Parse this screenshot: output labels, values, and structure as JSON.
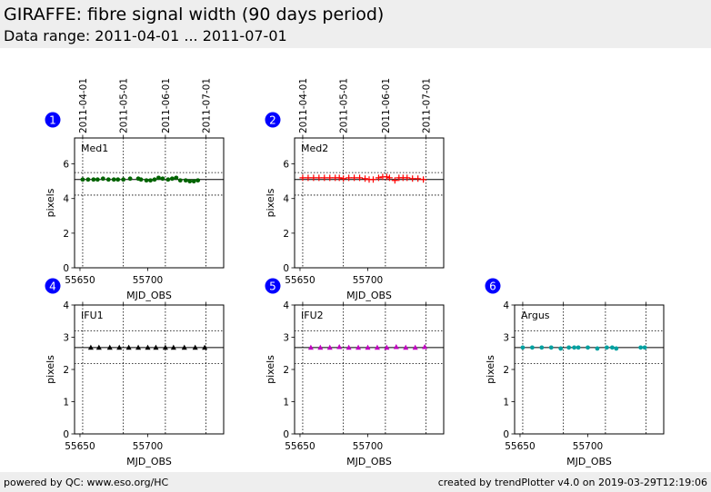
{
  "header": {
    "title": "GIRAFFE: fibre signal width (90 days period)",
    "subtitle": "Data range: 2011-04-01 ... 2011-07-01"
  },
  "footer": {
    "left": "powered by QC: www.eso.org/HC",
    "right": "created by trendPlotter v4.0 on 2019-03-29T12:19:06"
  },
  "colors": {
    "header_bg": "#eeeeee",
    "badge": "#0000ff",
    "Med1": "#006400",
    "Med2": "#ff0000",
    "IFU1": "#000000",
    "IFU2": "#c000c0",
    "Argus": "#00a0a0"
  },
  "chart_data": [
    {
      "type": "scatter",
      "badge": "1",
      "label": "Med1",
      "marker": "circle",
      "color": "#006400",
      "xlabel": "MJD_OBS",
      "ylabel": "pixels",
      "xlim": [
        55646,
        55756
      ],
      "ylim": [
        0,
        7.5
      ],
      "xticks": [
        55650,
        55700
      ],
      "yticks": [
        0,
        2,
        4,
        6
      ],
      "date_ticks": [
        {
          "mjd": 55652,
          "label": "2011-04-01"
        },
        {
          "mjd": 55682,
          "label": "2011-05-01"
        },
        {
          "mjd": 55713,
          "label": "2011-06-01"
        },
        {
          "mjd": 55743,
          "label": "2011-07-01"
        }
      ],
      "hlines": {
        "solid": 5.1,
        "dotted": [
          5.5,
          4.2
        ]
      },
      "x": [
        55652,
        55656,
        55660,
        55663,
        55667,
        55671,
        55675,
        55678,
        55682,
        55687,
        55693,
        55695,
        55699,
        55702,
        55705,
        55708,
        55711,
        55715,
        55718,
        55721,
        55724,
        55728,
        55731,
        55734,
        55737
      ],
      "y": [
        5.1,
        5.1,
        5.1,
        5.1,
        5.15,
        5.1,
        5.1,
        5.1,
        5.1,
        5.15,
        5.15,
        5.1,
        5.05,
        5.05,
        5.1,
        5.2,
        5.15,
        5.1,
        5.15,
        5.2,
        5.05,
        5.05,
        5.0,
        5.0,
        5.05
      ]
    },
    {
      "type": "scatter",
      "badge": "2",
      "label": "Med2",
      "marker": "plus",
      "color": "#ff0000",
      "xlabel": "MJD_OBS",
      "ylabel": "pixels",
      "xlim": [
        55646,
        55756
      ],
      "ylim": [
        0,
        7.5
      ],
      "xticks": [
        55650,
        55700
      ],
      "yticks": [
        0,
        2,
        4,
        6
      ],
      "date_ticks": [
        {
          "mjd": 55652,
          "label": "2011-04-01"
        },
        {
          "mjd": 55682,
          "label": "2011-05-01"
        },
        {
          "mjd": 55713,
          "label": "2011-06-01"
        },
        {
          "mjd": 55743,
          "label": "2011-07-01"
        }
      ],
      "hlines": {
        "solid": 5.1,
        "dotted": [
          5.5,
          4.2
        ]
      },
      "x": [
        55652,
        55656,
        55660,
        55664,
        55668,
        55672,
        55676,
        55679,
        55682,
        55686,
        55690,
        55694,
        55698,
        55701,
        55704,
        55708,
        55711,
        55714,
        55716,
        55720,
        55723,
        55726,
        55729,
        55733,
        55737,
        55741
      ],
      "y": [
        5.2,
        5.2,
        5.2,
        5.2,
        5.2,
        5.2,
        5.2,
        5.2,
        5.15,
        5.2,
        5.2,
        5.2,
        5.15,
        5.1,
        5.1,
        5.2,
        5.25,
        5.25,
        5.2,
        5.05,
        5.2,
        5.2,
        5.2,
        5.15,
        5.15,
        5.1
      ]
    },
    {
      "type": "scatter",
      "badge": "4",
      "label": "IFU1",
      "marker": "triangle",
      "color": "#000000",
      "xlabel": "MJD_OBS",
      "ylabel": "pixels",
      "xlim": [
        55646,
        55756
      ],
      "ylim": [
        0,
        4
      ],
      "xticks": [
        55650,
        55700
      ],
      "yticks": [
        0,
        1,
        2,
        3,
        4
      ],
      "date_ticks": [
        {
          "mjd": 55652,
          "label": ""
        },
        {
          "mjd": 55682,
          "label": ""
        },
        {
          "mjd": 55713,
          "label": ""
        },
        {
          "mjd": 55743,
          "label": ""
        }
      ],
      "hlines": {
        "solid": 2.68,
        "dotted": [
          3.2,
          2.18
        ]
      },
      "x": [
        55658,
        55664,
        55672,
        55679,
        55686,
        55693,
        55700,
        55706,
        55713,
        55719,
        55727,
        55735,
        55742
      ],
      "y": [
        2.68,
        2.68,
        2.68,
        2.68,
        2.68,
        2.68,
        2.68,
        2.68,
        2.68,
        2.68,
        2.68,
        2.68,
        2.68
      ]
    },
    {
      "type": "scatter",
      "badge": "5",
      "label": "IFU2",
      "marker": "triangle",
      "color": "#c000c0",
      "xlabel": "MJD_OBS",
      "ylabel": "pixels",
      "xlim": [
        55646,
        55756
      ],
      "ylim": [
        0,
        4
      ],
      "xticks": [
        55650,
        55700
      ],
      "yticks": [
        0,
        1,
        2,
        3,
        4
      ],
      "date_ticks": [
        {
          "mjd": 55652,
          "label": ""
        },
        {
          "mjd": 55682,
          "label": ""
        },
        {
          "mjd": 55713,
          "label": ""
        },
        {
          "mjd": 55743,
          "label": ""
        }
      ],
      "hlines": {
        "solid": 2.68,
        "dotted": [
          3.2,
          2.18
        ]
      },
      "x": [
        55658,
        55665,
        55672,
        55679,
        55686,
        55693,
        55700,
        55707,
        55714,
        55721,
        55728,
        55735,
        55742
      ],
      "y": [
        2.68,
        2.68,
        2.68,
        2.7,
        2.68,
        2.68,
        2.68,
        2.68,
        2.68,
        2.7,
        2.68,
        2.68,
        2.7
      ]
    },
    {
      "type": "scatter",
      "badge": "6",
      "label": "Argus",
      "marker": "circle",
      "color": "#00a0a0",
      "xlabel": "MJD_OBS",
      "ylabel": "pixels",
      "xlim": [
        55646,
        55756
      ],
      "ylim": [
        0,
        4
      ],
      "xticks": [
        55650,
        55700
      ],
      "yticks": [
        0,
        1,
        2,
        3,
        4
      ],
      "date_ticks": [
        {
          "mjd": 55652,
          "label": ""
        },
        {
          "mjd": 55682,
          "label": ""
        },
        {
          "mjd": 55713,
          "label": ""
        },
        {
          "mjd": 55743,
          "label": ""
        }
      ],
      "hlines": {
        "solid": 2.68,
        "dotted": [
          3.2,
          2.18
        ]
      },
      "x": [
        55652,
        55659,
        55666,
        55673,
        55680,
        55686,
        55690,
        55693,
        55700,
        55707,
        55714,
        55718,
        55721,
        55739,
        55742
      ],
      "y": [
        2.68,
        2.68,
        2.68,
        2.68,
        2.65,
        2.68,
        2.68,
        2.68,
        2.68,
        2.65,
        2.68,
        2.68,
        2.65,
        2.68,
        2.68
      ]
    }
  ]
}
